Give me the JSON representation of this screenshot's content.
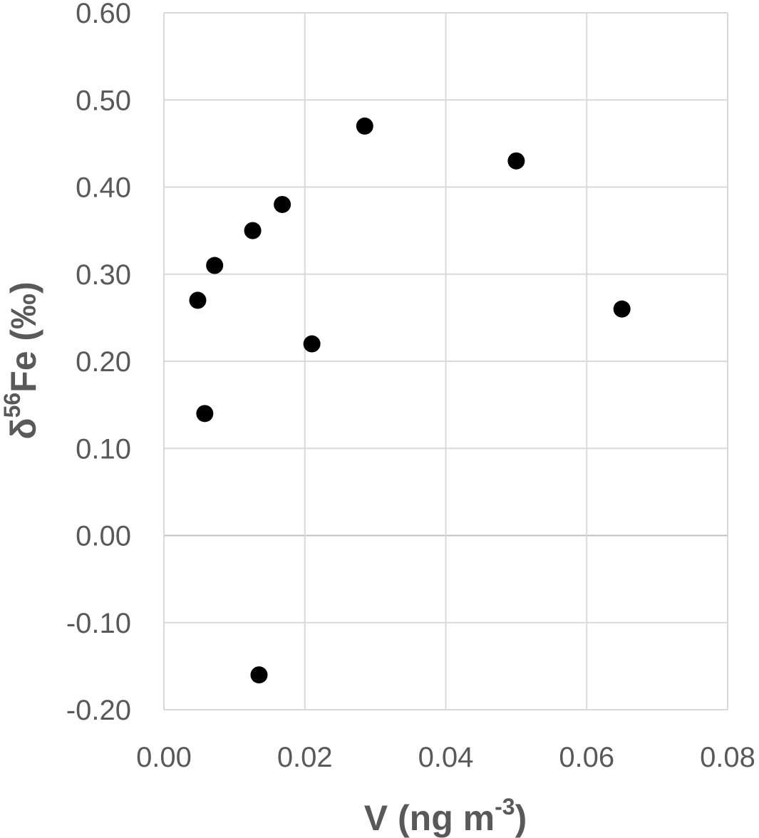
{
  "chart_data": {
    "type": "scatter",
    "title": "",
    "xlabel": {
      "main": "V (ng m",
      "sup": "-3",
      "tail": ")"
    },
    "ylabel": {
      "pre": "δ",
      "sup": "56",
      "main": "Fe (‰)"
    },
    "xlim": [
      0,
      0.08
    ],
    "ylim": [
      -0.2,
      0.6
    ],
    "xticks": [
      0.0,
      0.02,
      0.04,
      0.06,
      0.08
    ],
    "yticks": [
      -0.2,
      -0.1,
      0.0,
      0.1,
      0.2,
      0.3,
      0.4,
      0.5,
      0.6
    ],
    "xtick_labels": [
      "0.00",
      "0.02",
      "0.04",
      "0.06",
      "0.08"
    ],
    "ytick_labels": [
      "-0.20",
      "-0.10",
      "0.00",
      "0.10",
      "0.20",
      "0.30",
      "0.40",
      "0.50",
      "0.60"
    ],
    "grid": true,
    "marker_color": "#000000",
    "grid_color": "#d9d9d9",
    "zero_line_color": "#bfbfbf",
    "series": [
      {
        "points": [
          {
            "x": 0.0048,
            "y": 0.27
          },
          {
            "x": 0.0058,
            "y": 0.14
          },
          {
            "x": 0.0072,
            "y": 0.31
          },
          {
            "x": 0.0126,
            "y": 0.35
          },
          {
            "x": 0.0135,
            "y": -0.16
          },
          {
            "x": 0.0168,
            "y": 0.38
          },
          {
            "x": 0.021,
            "y": 0.22
          },
          {
            "x": 0.0285,
            "y": 0.47
          },
          {
            "x": 0.05,
            "y": 0.43
          },
          {
            "x": 0.065,
            "y": 0.26
          }
        ]
      }
    ]
  }
}
